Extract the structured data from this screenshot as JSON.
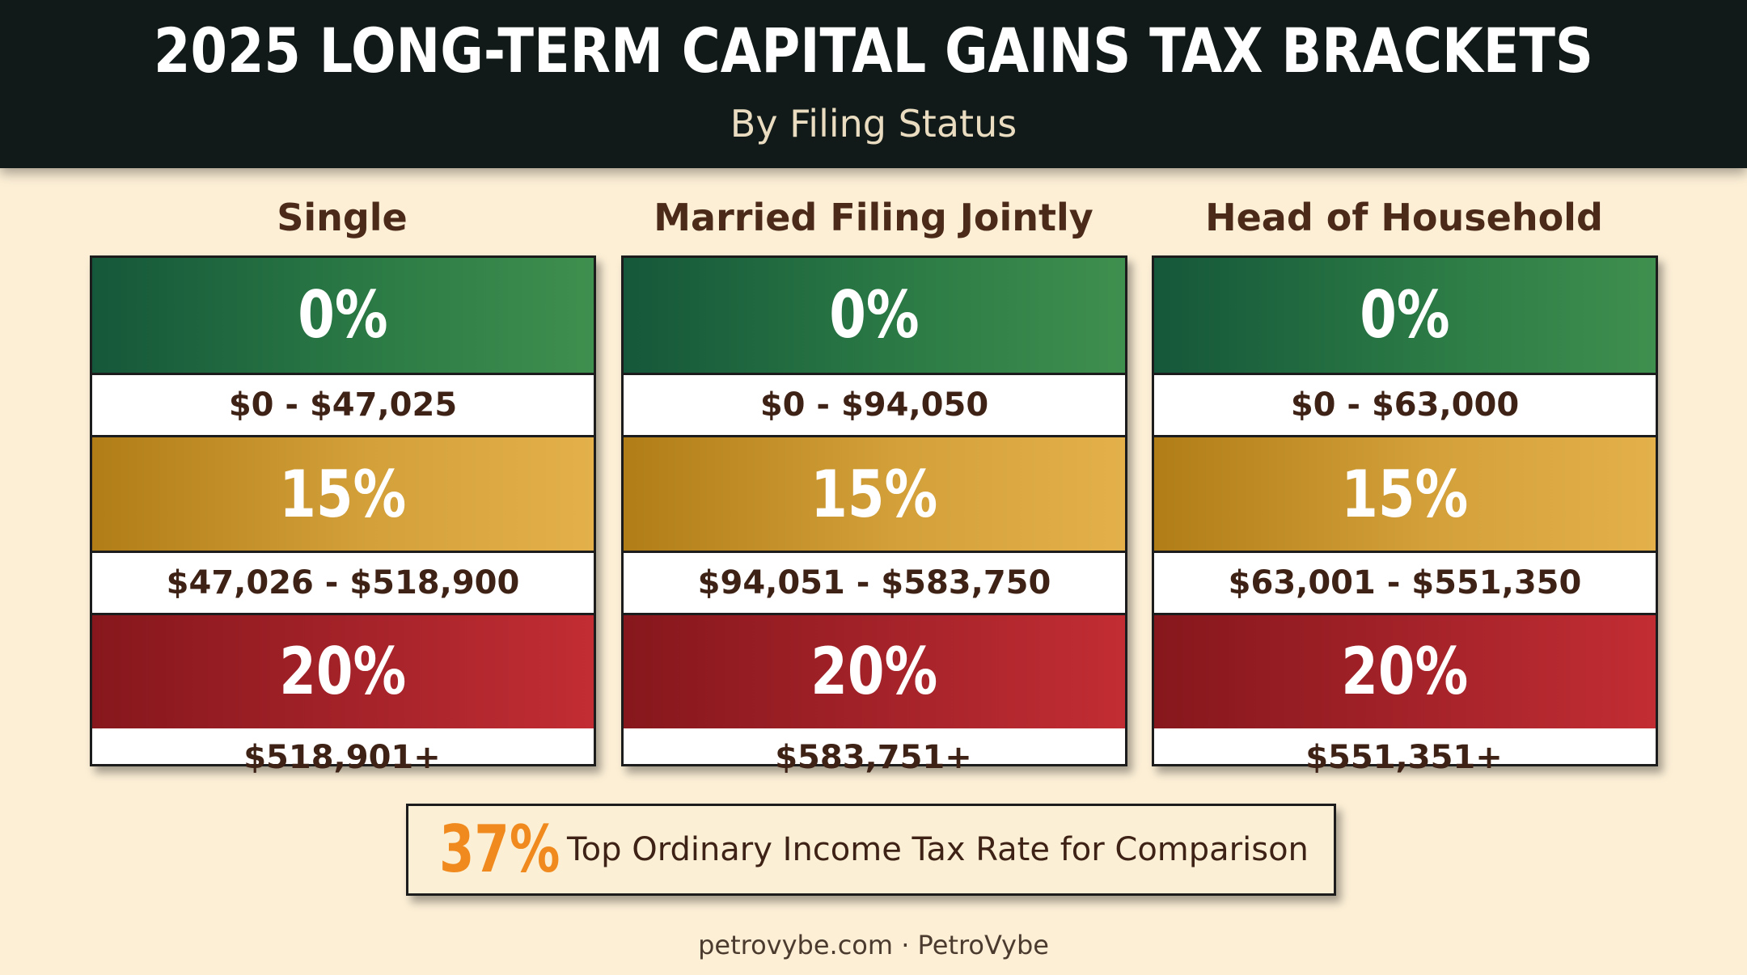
{
  "header": {
    "title": "2025 LONG-TERM CAPITAL GAINS TAX BRACKETS",
    "subtitle": "By Filing Status"
  },
  "columns": [
    {
      "status": "Single",
      "rate_0": "0%",
      "range_0": "$0 - $47,025",
      "rate_15": "15%",
      "range_15": "$47,026 - $518,900",
      "rate_20": "20%",
      "range_20": "$518,901+"
    },
    {
      "status": "Married Filing Jointly",
      "rate_0": "0%",
      "range_0": "$0 - $94,050",
      "rate_15": "15%",
      "range_15": "$94,051 - $583,750",
      "rate_20": "20%",
      "range_20": "$583,751+"
    },
    {
      "status": "Head of Household",
      "rate_0": "0%",
      "range_0": "$0 - $63,000",
      "rate_15": "15%",
      "range_15": "$63,001 - $551,350",
      "rate_20": "20%",
      "range_20": "$551,351+"
    }
  ],
  "comparison": {
    "rate": "37%",
    "label": "Top Ordinary Income Tax Rate for Comparison"
  },
  "footer": {
    "text": "petrovybe.com · PetroVybe"
  },
  "colors": {
    "header_bg": "#111a18",
    "page_bg": "#fcefd6",
    "zero_rate": "#2b7a45",
    "fifteen_rate": "#d3a03a",
    "twenty_rate": "#a6232a",
    "comparison_rate": "#f08a1e",
    "text_brown": "#3e2216"
  }
}
